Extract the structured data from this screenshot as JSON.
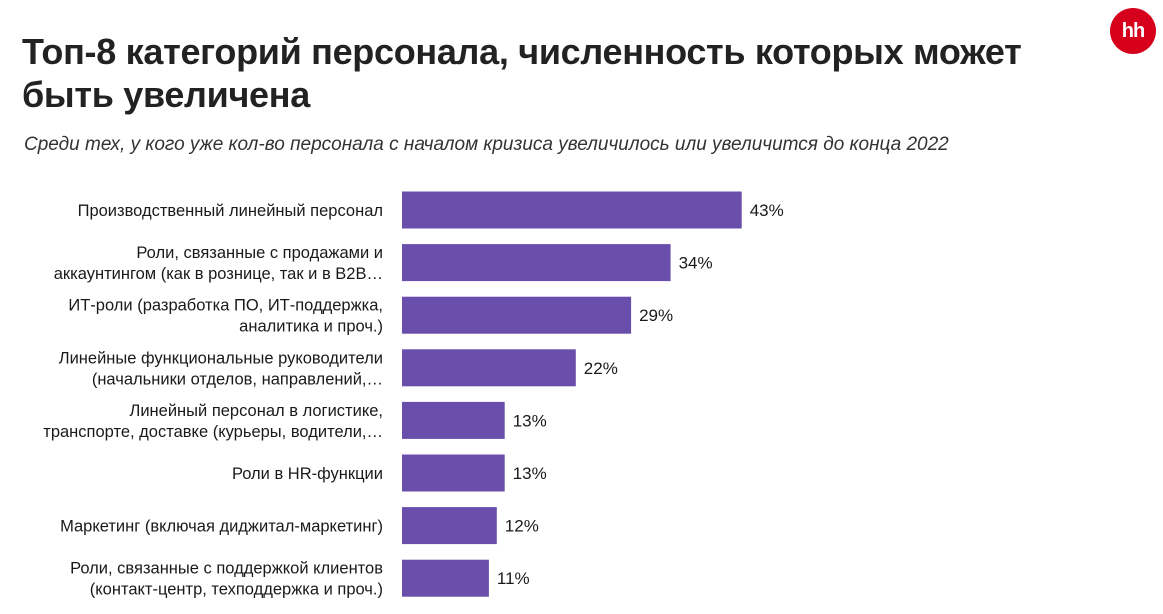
{
  "brand": {
    "logo_text": "hh",
    "logo_color": "#d6001c"
  },
  "chart_data": {
    "type": "bar",
    "orientation": "horizontal",
    "title": "Топ-8 категорий персонала, численность которых может быть увеличена",
    "subtitle": "Среди тех, у кого уже кол-во персонала с началом кризиса увеличилось или увеличится до конца 2022",
    "bar_color": "#6a4eab",
    "grid": false,
    "legend": "none",
    "categories": [
      [
        "Производственный линейный персонал"
      ],
      [
        "Роли, связанные с продажами и",
        "аккаунтингом (как в рознице, так и в B2B…"
      ],
      [
        "ИТ-роли (разработка ПО, ИТ-поддержка,",
        "аналитика и проч.)"
      ],
      [
        "Линейные функциональные руководители",
        "(начальники отделов, направлений,…"
      ],
      [
        "Линейный персонал в логистике,",
        "транспорте, доставке (курьеры, водители,…"
      ],
      [
        "Роли в HR-функции"
      ],
      [
        "Маркетинг (включая диджитал-маркетинг)"
      ],
      [
        "Роли, связанные с поддержкой клиентов",
        "(контакт-центр, техподдержка и проч.)"
      ]
    ],
    "values": [
      43,
      34,
      29,
      22,
      13,
      13,
      12,
      11
    ],
    "value_labels": [
      "43%",
      "34%",
      "29%",
      "22%",
      "13%",
      "13%",
      "12%",
      "11%"
    ],
    "unit": "%"
  }
}
